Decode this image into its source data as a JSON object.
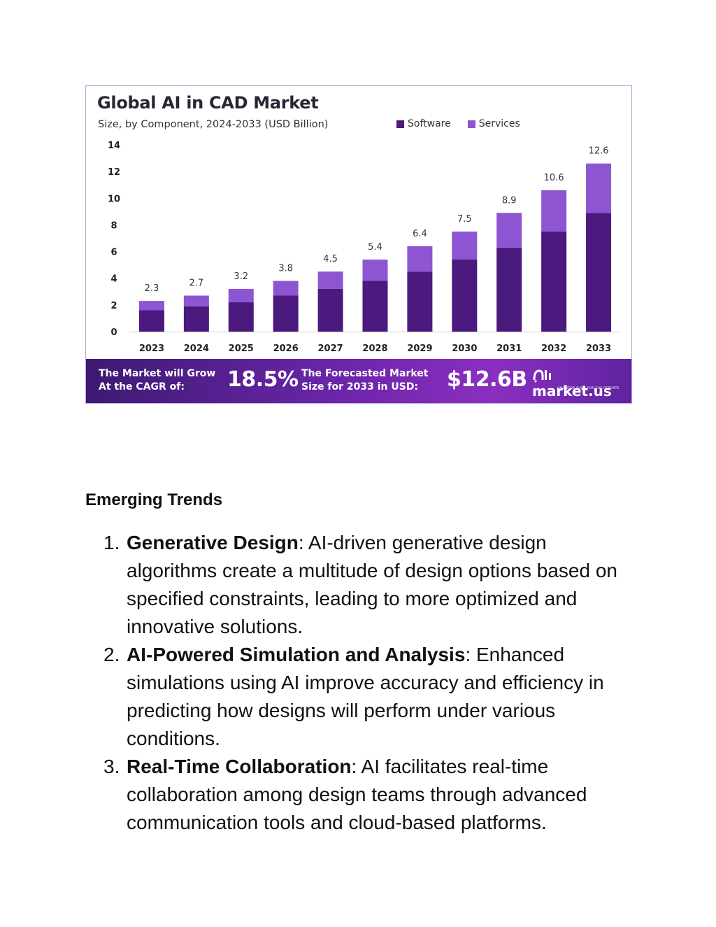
{
  "infographic": {
    "title": "Global AI in CAD Market",
    "subtitle": "Size, by Component, 2024-2033 (USD Billion)",
    "banner": {
      "cagr_text": "The Market will Grow At the CAGR of:",
      "cagr_value": "18.5%",
      "forecast_text": "The Forecasted Market Size for 2033 in USD:",
      "forecast_value": "$12.6B",
      "brand_name": "market.us",
      "brand_tagline": "ONE STOP SHOP FOR THE REPORTS"
    }
  },
  "chart_data": {
    "type": "bar",
    "stacked": true,
    "title": "Global AI in CAD Market",
    "subtitle": "Size, by Component, 2024-2033 (USD Billion)",
    "categories": [
      "2023",
      "2024",
      "2025",
      "2026",
      "2027",
      "2028",
      "2029",
      "2030",
      "2031",
      "2032",
      "2033"
    ],
    "series": [
      {
        "name": "Software",
        "color": "#4a1a7e",
        "values": [
          1.6,
          1.9,
          2.2,
          2.7,
          3.2,
          3.8,
          4.5,
          5.4,
          6.3,
          7.5,
          8.9
        ]
      },
      {
        "name": "Services",
        "color": "#8e55d3",
        "values": [
          0.7,
          0.8,
          1.0,
          1.1,
          1.3,
          1.6,
          1.9,
          2.1,
          2.6,
          3.1,
          3.7
        ]
      }
    ],
    "totals": [
      2.3,
      2.7,
      3.2,
      3.8,
      4.5,
      5.4,
      6.4,
      7.5,
      8.9,
      10.6,
      12.6
    ],
    "total_labels": [
      "2.3",
      "2.7",
      "3.2",
      "3.8",
      "4.5",
      "5.4",
      "6.4",
      "7.5",
      "8.9",
      "10.6",
      "12.6"
    ],
    "ylim": [
      0,
      14
    ],
    "yticks": [
      0,
      2,
      4,
      6,
      8,
      10,
      12,
      14
    ],
    "legend_position": "top-right",
    "grid": false
  },
  "trends": {
    "heading": "Emerging Trends",
    "items": [
      {
        "number": "1.",
        "title": "Generative Design",
        "text": ": AI-driven generative design algorithms create a multitude of design options based on specified constraints, leading to more optimized and innovative solutions."
      },
      {
        "number": "2.",
        "title": "AI-Powered Simulation and Analysis",
        "text": ": Enhanced simulations using AI improve accuracy and efficiency in predicting how designs will perform under various conditions."
      },
      {
        "number": "3.",
        "title": "Real-Time Collaboration",
        "text": ": AI facilitates real-time collaboration among design teams through advanced communication tools and cloud-based platforms."
      }
    ]
  }
}
